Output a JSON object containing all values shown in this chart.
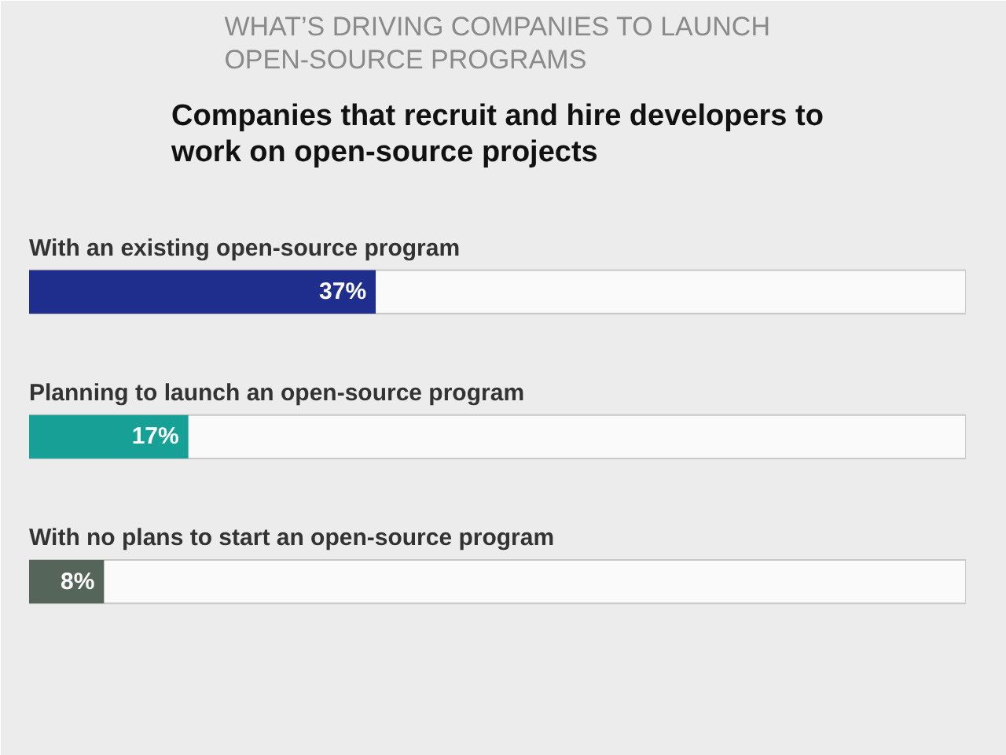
{
  "chart_data": {
    "type": "bar",
    "orientation": "horizontal",
    "title": "WHAT’S DRIVING COMPANIES TO LAUNCH OPEN-SOURCE PROGRAMS",
    "subtitle": "Companies that recruit and hire developers to work on open-source projects",
    "categories": [
      "With an existing open-source program",
      "Planning to launch an open-source program",
      "With no plans to start an open-source program"
    ],
    "values": [
      37,
      17,
      8
    ],
    "colors": [
      "#1f2d8c",
      "#17a096",
      "#56655a"
    ],
    "value_labels": [
      "37%",
      "17%",
      "8%"
    ],
    "xlim": [
      0,
      100
    ],
    "tick_labels": false,
    "grid": false
  }
}
